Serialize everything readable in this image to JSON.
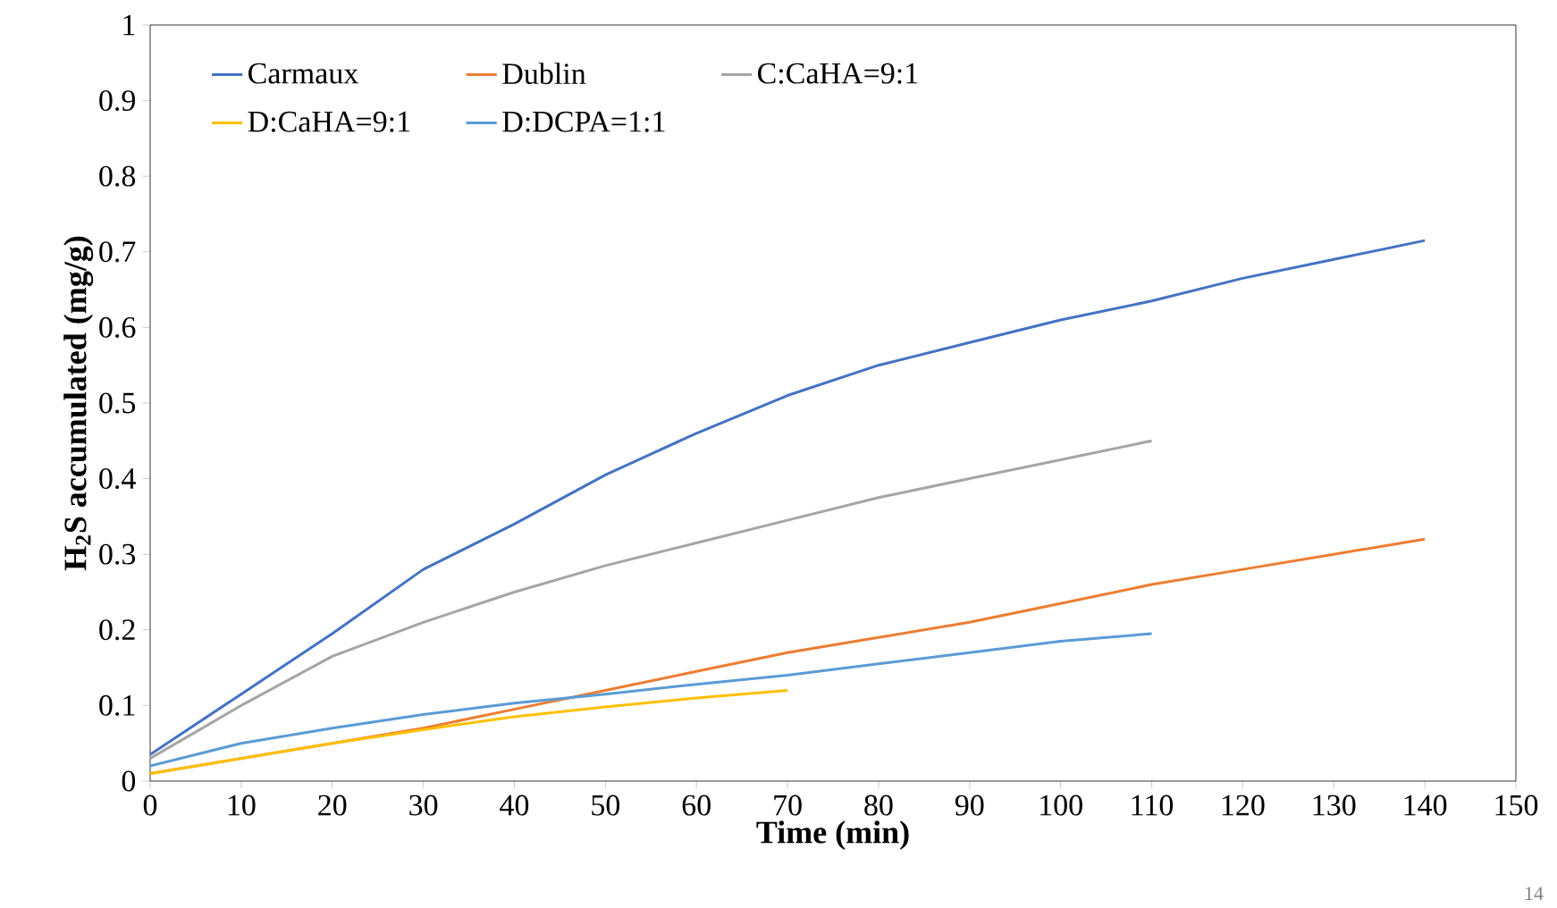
{
  "chart_data": {
    "type": "line",
    "xlabel": "Time (min)",
    "ylabel": "H$_{2}$S accumulated (mg/g)",
    "xlim": [
      0,
      150
    ],
    "xticks": [
      0,
      10,
      20,
      30,
      40,
      50,
      60,
      70,
      80,
      90,
      100,
      110,
      120,
      130,
      140,
      150
    ],
    "ylim": [
      0,
      1
    ],
    "yticks": [
      0,
      0.1,
      0.2,
      0.3,
      0.4,
      0.5,
      0.6,
      0.7,
      0.8,
      0.9,
      1
    ],
    "legend": "top left",
    "grid": false,
    "marker": "none",
    "line_style": "solid",
    "annotations": [
      "14"
    ],
    "x": [
      0,
      10,
      20,
      30,
      40,
      50,
      60,
      70,
      80,
      90,
      100,
      110,
      120,
      130,
      140
    ],
    "series": [
      {
        "name": "Carmaux",
        "color": "#4472c4",
        "values": [
          0.035,
          0.115,
          0.195,
          0.28,
          0.34,
          0.405,
          0.46,
          0.51,
          0.55,
          0.58,
          0.61,
          0.635,
          0.665,
          0.69,
          0.715
        ]
      },
      {
        "name": "Dublin",
        "color": "#ed7d31",
        "values": [
          0.01,
          0.03,
          0.05,
          0.07,
          0.095,
          0.12,
          0.145,
          0.17,
          0.19,
          0.21,
          0.235,
          0.26,
          0.28,
          0.3,
          0.32
        ]
      },
      {
        "name": "C:CaHA=9:1",
        "color": "#a5a5a5",
        "values": [
          0.03,
          0.1,
          0.165,
          0.21,
          0.25,
          0.285,
          0.315,
          0.345,
          0.375,
          0.4,
          0.425,
          0.45,
          null,
          null,
          null
        ]
      },
      {
        "name": "D:CaHA=9:1",
        "color": "#ffc000",
        "values": [
          0.01,
          0.03,
          0.05,
          0.068,
          0.085,
          0.098,
          0.11,
          0.12,
          null,
          null,
          null,
          null,
          null,
          null,
          null
        ]
      },
      {
        "name": "D:DCPA=1:1",
        "color": "#5b9bd5",
        "values": [
          0.02,
          0.05,
          0.07,
          0.088,
          0.103,
          0.115,
          0.128,
          0.14,
          0.155,
          0.17,
          0.185,
          0.195,
          null,
          null,
          null
        ]
      }
    ]
  }
}
